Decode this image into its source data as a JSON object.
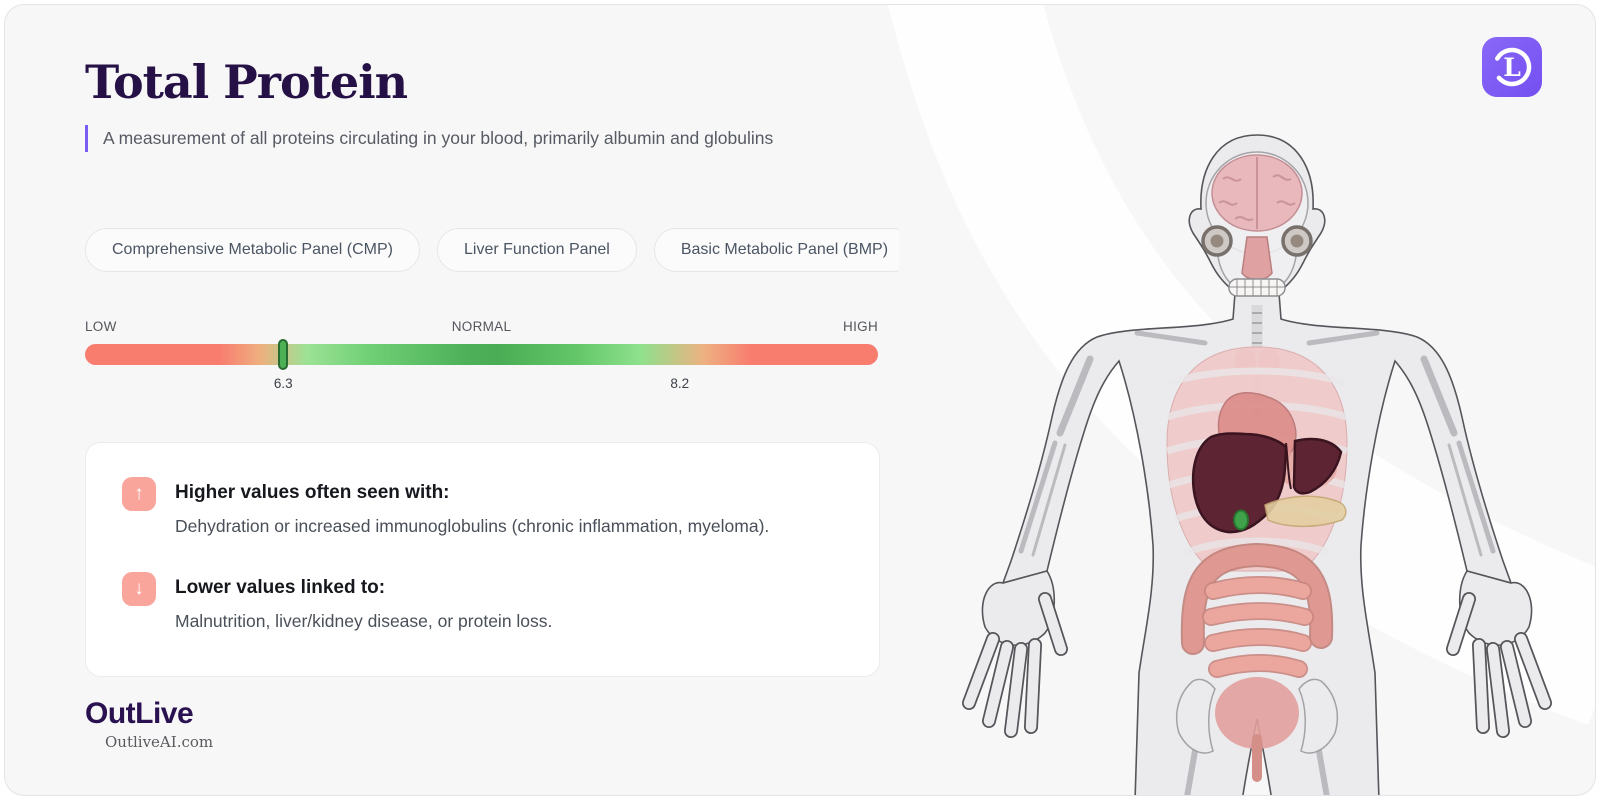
{
  "header": {
    "title": "Total Protein",
    "description": "A measurement of all proteins circulating in your blood, primarily albumin and globulins",
    "accent_color": "#7a5cf5",
    "title_color": "#251145"
  },
  "panels": {
    "items": [
      {
        "label": "Comprehensive Metabolic Panel (CMP)"
      },
      {
        "label": "Liver Function Panel"
      },
      {
        "label": "Basic Metabolic Panel (BMP)"
      }
    ]
  },
  "range_bar": {
    "low_label": "LOW",
    "normal_label": "NORMAL",
    "high_label": "HIGH",
    "low_value": "6.3",
    "high_value": "8.2",
    "marker_percent": 25,
    "low_value_percent": 25,
    "high_value_percent": 75,
    "marker_color": "#4db054",
    "marker_border_color": "#276b30",
    "gradient": [
      "#f87d6f 0%",
      "#f87d6f 17%",
      "#efae7e 22%",
      "#9ce295 28%",
      "#6fcf75 36%",
      "#4eb159 48%",
      "#4aad55 52%",
      "#63c668 62%",
      "#8ee18d 70%",
      "#edb181 78%",
      "#f87d6f 84%",
      "#f87d6f 100%"
    ]
  },
  "insights": {
    "higher": {
      "icon_glyph": "↑",
      "heading": "Higher values often seen with:",
      "text": "Dehydration or increased immunoglobulins (chronic inflammation, myeloma)."
    },
    "lower": {
      "icon_glyph": "↓",
      "heading": "Lower values linked to:",
      "text": "Malnutrition, liver/kidney disease, or protein loss."
    },
    "badge_color": "#f9a59b"
  },
  "footer": {
    "brand": "OutLive",
    "site": "OutliveAI.com"
  },
  "app_icon": {
    "letter": "L",
    "background_color": "#7c5af4"
  },
  "body_figure": {
    "highlighted_organ": "liver",
    "liver_color": "#5d2433",
    "gallbladder_color": "#3fa24b",
    "organ_pink": "#f0c9c9",
    "silhouette_color": "#ebebee"
  }
}
